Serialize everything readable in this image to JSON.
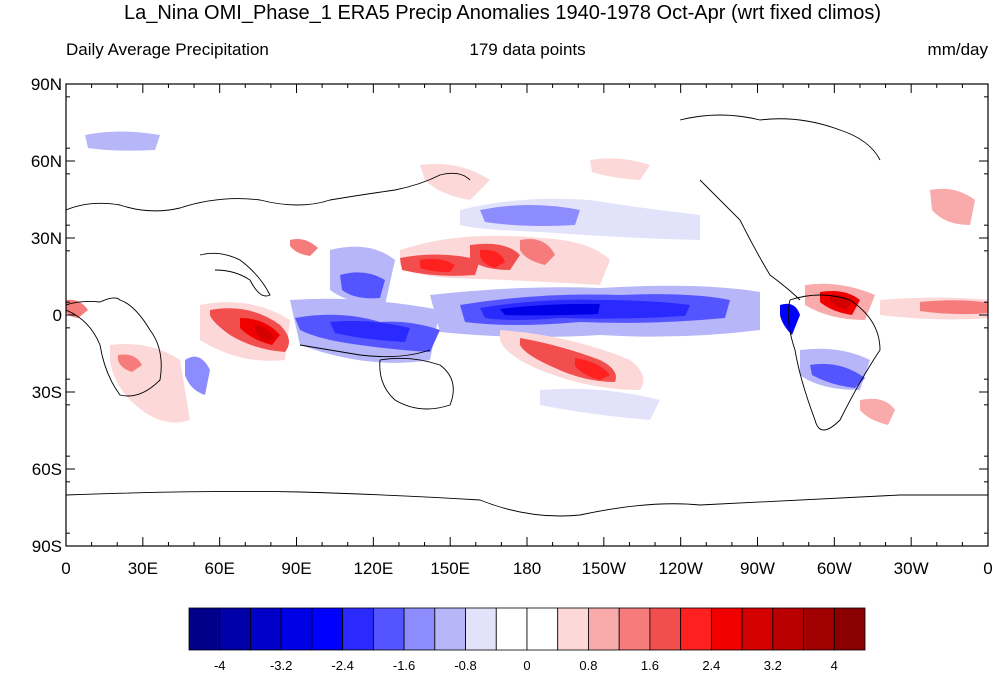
{
  "title": "La_Nina OMI_Phase_1 ERA5 Precip Anomalies 1940-1978 Oct-Apr (wrt fixed climos)",
  "left_label": "Daily Average Precipitation",
  "center_label": "179 data points",
  "right_label": "mm/day",
  "lat_labels": [
    "90N",
    "60N",
    "30N",
    "0",
    "30S",
    "60S",
    "90S"
  ],
  "lon_labels": [
    "0",
    "30E",
    "60E",
    "90E",
    "120E",
    "150E",
    "180",
    "150W",
    "120W",
    "90W",
    "60W",
    "30W",
    "0"
  ],
  "colorbar": {
    "colors": [
      "#00008b",
      "#0000a8",
      "#0000c8",
      "#0000e6",
      "#0000ff",
      "#2a2aff",
      "#5555ff",
      "#8c8cff",
      "#b6b6f8",
      "#e2e2fb",
      "#ffffff",
      "#ffffff",
      "#fcd8d8",
      "#f9aaaa",
      "#f67c7c",
      "#f24e4e",
      "#ff2020",
      "#f00000",
      "#d40000",
      "#b80000",
      "#a00000",
      "#8b0000"
    ],
    "labels": [
      "-4",
      "-3.2",
      "-2.4",
      "-1.6",
      "-0.8",
      "0",
      "0.8",
      "1.6",
      "2.4",
      "3.2",
      "4"
    ]
  }
}
